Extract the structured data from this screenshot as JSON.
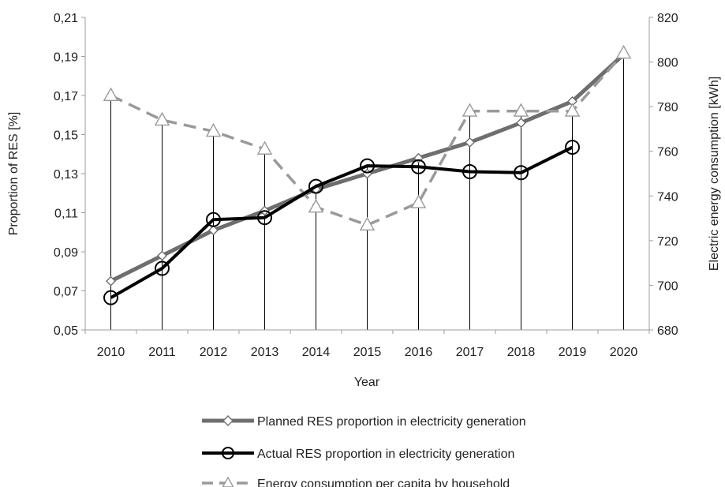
{
  "chart_data": {
    "type": "line",
    "categories": [
      "2010",
      "2011",
      "2012",
      "2013",
      "2014",
      "2015",
      "2016",
      "2017",
      "2018",
      "2019",
      "2020"
    ],
    "xlabel": "Year",
    "ylabel_left": "Proportion of RES [%]",
    "ylabel_right": "Electric energy consumption [kWh]",
    "ylim_left": [
      0.05,
      0.21
    ],
    "ylim_right": [
      680,
      820
    ],
    "yticks_left": [
      "0,05",
      "0,07",
      "0,09",
      "0,11",
      "0,13",
      "0,15",
      "0,17",
      "0,19",
      "0,21"
    ],
    "yticks_right": [
      "680",
      "700",
      "720",
      "740",
      "760",
      "780",
      "800",
      "820"
    ],
    "grid": "vertical",
    "legend_position": "bottom",
    "series": [
      {
        "name": "Planned RES proportion in electricity generation",
        "axis": "left",
        "color": "#6e6e6e",
        "marker": "diamond",
        "values": [
          0.075,
          0.088,
          0.101,
          0.111,
          0.122,
          0.13,
          0.138,
          0.146,
          0.156,
          0.167,
          0.191
        ]
      },
      {
        "name": "Actual RES proportion in electricity generation",
        "axis": "left",
        "color": "#000000",
        "marker": "circle",
        "values": [
          0.0665,
          0.0815,
          0.1065,
          0.1075,
          0.1235,
          0.134,
          0.1335,
          0.131,
          0.1305,
          0.1435,
          null
        ]
      },
      {
        "name": "Energy consumption per capita by household",
        "axis": "right",
        "color": "#9a9a9a",
        "marker": "triangle",
        "dashed": true,
        "values": [
          785,
          774,
          769,
          761,
          735,
          727,
          737,
          778,
          778,
          778,
          804
        ]
      }
    ]
  }
}
